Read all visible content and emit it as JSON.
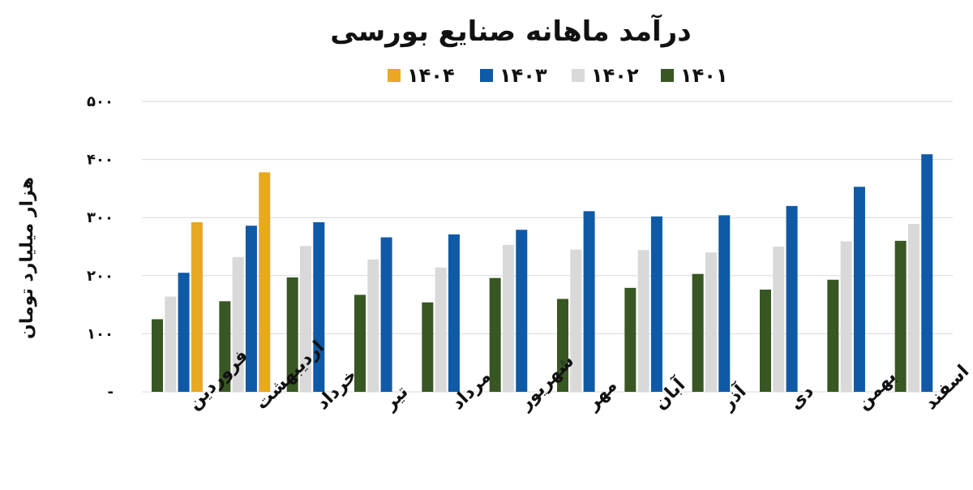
{
  "chart_data": {
    "type": "bar",
    "title": "درآمد ماهانه صنایع بورسی",
    "ylabel": "هزار میلیارد تومان",
    "xlabel": "",
    "ylim": [
      0,
      500
    ],
    "y_ticks": [
      {
        "value": 0,
        "label": "-"
      },
      {
        "value": 100,
        "label": "۱۰۰"
      },
      {
        "value": 200,
        "label": "۲۰۰"
      },
      {
        "value": 300,
        "label": "۳۰۰"
      },
      {
        "value": 400,
        "label": "۴۰۰"
      },
      {
        "value": 500,
        "label": "۵۰۰"
      }
    ],
    "categories": [
      "فروردین",
      "اردیبهشت",
      "خرداد",
      "تیر",
      "مرداد",
      "شهریور",
      "مهر",
      "آبان",
      "آذر",
      "دی",
      "بهمن",
      "اسفند"
    ],
    "series": [
      {
        "name": "۱۴۰۱",
        "color": "#385723",
        "values": [
          125,
          156,
          197,
          167,
          154,
          196,
          160,
          179,
          203,
          176,
          193,
          260
        ]
      },
      {
        "name": "۱۴۰۲",
        "color": "#d9d9d9",
        "values": [
          164,
          232,
          251,
          228,
          214,
          253,
          245,
          244,
          240,
          250,
          259,
          289
        ]
      },
      {
        "name": "۱۴۰۳",
        "color": "#0e5aa7",
        "values": [
          205,
          286,
          292,
          266,
          271,
          279,
          311,
          302,
          304,
          320,
          353,
          409
        ]
      },
      {
        "name": "۱۴۰۴",
        "color": "#e8a820",
        "values": [
          292,
          378,
          null,
          null,
          null,
          null,
          null,
          null,
          null,
          null,
          null,
          null
        ]
      }
    ],
    "legend_order": [
      3,
      2,
      1,
      0
    ],
    "legend_position": "top-center",
    "grid": true
  }
}
